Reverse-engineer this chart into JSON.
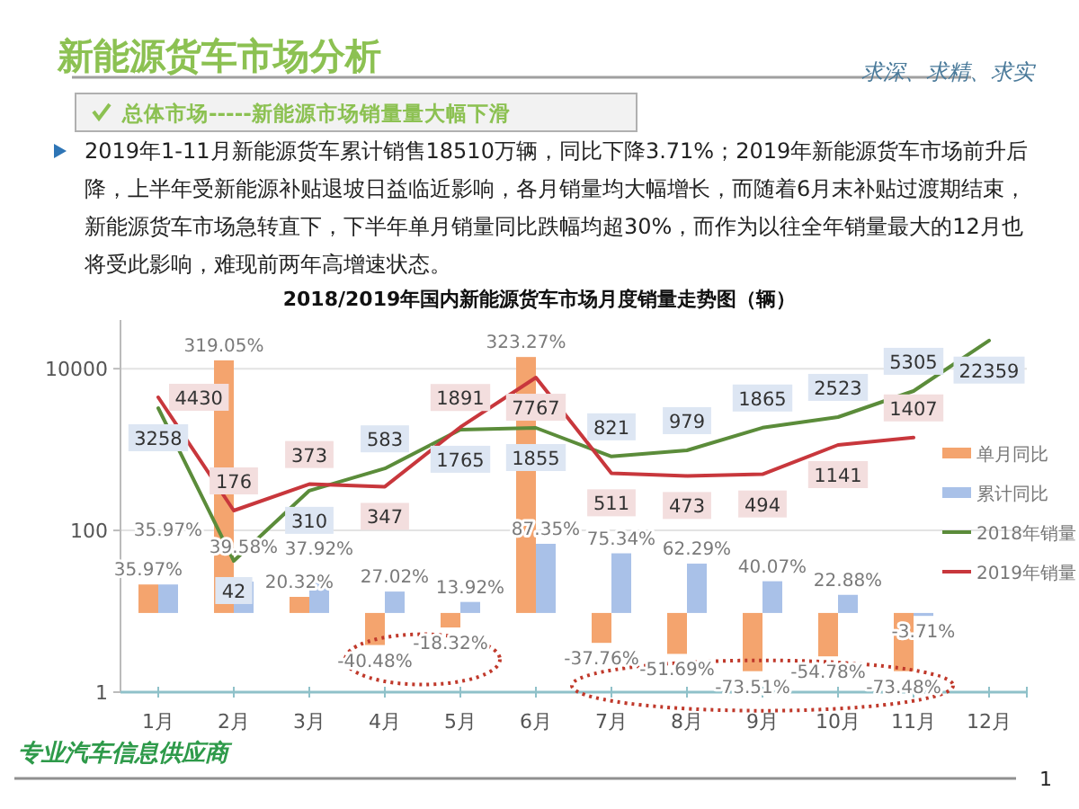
{
  "chart_data": {
    "type": "bar",
    "title": "新能源货车市场分析",
    "subtitle": "2018/2019年国内新能源货车市场月度销量走势图（辆）",
    "annotations": [
      "求深、求精、求实",
      "总体市场-----新能源市场销量量大幅下滑",
      "2019年1-11月新能源货车累计销售18510万辆，同比下降3.71%；2019年新能源货车市场前升后降，上半年受新能源补贴退坡日益临近影响，各月销量均大幅增长，而随着6月末补贴过渡期结束，新能源货车市场急转直下，下半年单月销量同比跌幅均超30%，而作为以往全年销量最大的12月也将受此影响，难现前两年高增速状态。",
      "专业汽车信息供应商",
      "1"
    ],
    "categories": [
      "1月",
      "2月",
      "3月",
      "4月",
      "5月",
      "6月",
      "7月",
      "8月",
      "9月",
      "10月",
      "11月",
      "12月"
    ],
    "series": [
      {
        "name": "单月同比",
        "type": "bar",
        "axis": "y2",
        "color": "#f4a46e",
        "values": [
          35.97,
          319.05,
          20.32,
          -40.48,
          -18.32,
          323.27,
          -37.76,
          -51.69,
          -73.51,
          -54.78,
          -73.48,
          null
        ],
        "value_labels": [
          "35.97%",
          "319.05%",
          "20.32%",
          "-40.48%",
          "-18.32%",
          "323.27%",
          "-37.76%",
          "-51.69%",
          "-73.51%",
          "-54.78%",
          "-73.48%",
          null
        ]
      },
      {
        "name": "累计同比",
        "type": "bar",
        "axis": "y2",
        "color": "#a9c1e8",
        "values": [
          35.97,
          39.58,
          37.92,
          27.02,
          13.92,
          87.35,
          75.34,
          62.29,
          40.07,
          22.88,
          -3.71,
          null
        ],
        "value_labels": [
          "35.97%",
          "39.58%",
          "37.92%",
          "27.02%",
          "13.92%",
          "87.35%",
          "75.34%",
          "62.29%",
          "40.07%",
          "22.88%",
          "-3.71%",
          null
        ]
      },
      {
        "name": "2018年销量",
        "type": "line",
        "color": "#5b8c3a",
        "values": [
          3258,
          42,
          310,
          583,
          1765,
          1855,
          821,
          979,
          1865,
          2523,
          5305,
          22359
        ]
      },
      {
        "name": "2019年销量",
        "type": "line",
        "color": "#c8373c",
        "values": [
          4430,
          176,
          373,
          347,
          1891,
          7767,
          511,
          473,
          494,
          1141,
          1407,
          null
        ]
      }
    ],
    "log": "y",
    "ylim": [
      1,
      40000
    ],
    "yticks": [
      1,
      100,
      10000
    ],
    "y2lim": [
      -100,
      370
    ],
    "grid": "y",
    "legend": "right",
    "marker": "none",
    "line_style": "solid",
    "data_labels": true
  }
}
